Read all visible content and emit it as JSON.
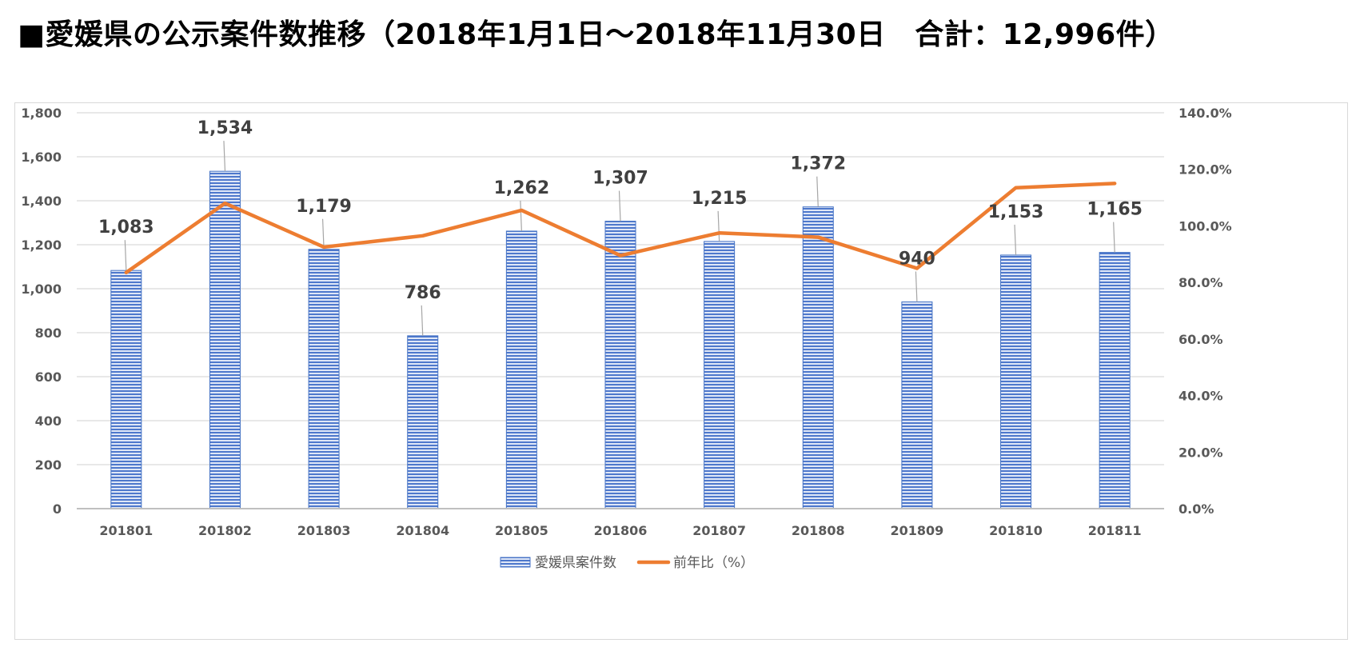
{
  "title": "■愛媛県の公示案件数推移（2018年1月1日～2018年11月30日　合計：12,996件）",
  "chart_data": {
    "type": "bar",
    "title": "",
    "categories": [
      "201801",
      "201802",
      "201803",
      "201804",
      "201805",
      "201806",
      "201807",
      "201808",
      "201809",
      "201810",
      "201811"
    ],
    "series": [
      {
        "name": "愛媛県案件数",
        "type": "bar",
        "axis": "left",
        "values": [
          1083,
          1534,
          1179,
          786,
          1262,
          1307,
          1215,
          1372,
          940,
          1153,
          1165
        ],
        "labels": [
          "1,083",
          "1,534",
          "1,179",
          "786",
          "1,262",
          "1,307",
          "1,215",
          "1,372",
          "940",
          "1,153",
          "1,165"
        ],
        "color": "#4472c4"
      },
      {
        "name": "前年比（%）",
        "type": "line",
        "axis": "right",
        "values": [
          83.5,
          108.0,
          92.5,
          96.5,
          105.5,
          89.5,
          97.5,
          96.0,
          85.0,
          113.5,
          115.0
        ],
        "color": "#ed7d31"
      }
    ],
    "y_left": {
      "lim": [
        0,
        1800
      ],
      "ticks": [
        "0",
        "200",
        "400",
        "600",
        "800",
        "1,000",
        "1,200",
        "1,400",
        "1,600",
        "1,800"
      ]
    },
    "y_right": {
      "lim": [
        0,
        140
      ],
      "ticks": [
        "0.0%",
        "20.0%",
        "40.0%",
        "60.0%",
        "80.0%",
        "100.0%",
        "120.0%",
        "140.0%"
      ]
    },
    "grid": true,
    "legend": "bottom-center"
  }
}
